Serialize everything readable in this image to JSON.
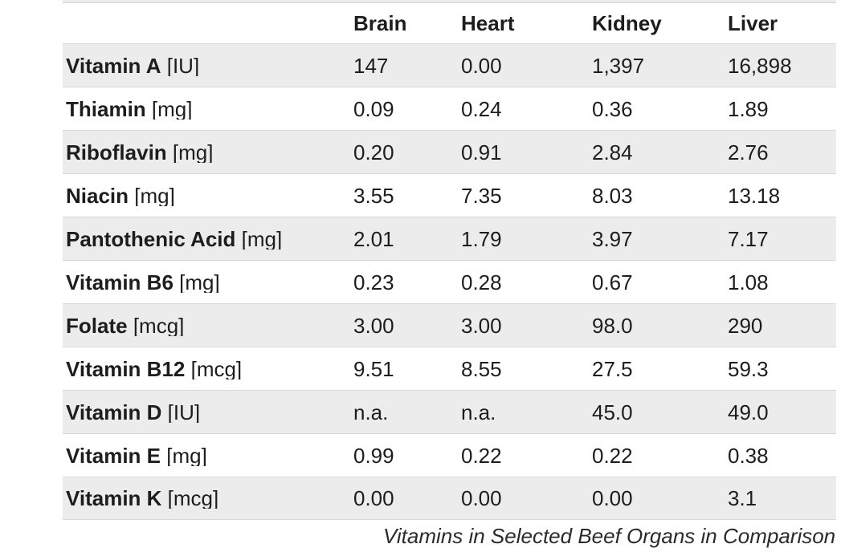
{
  "chart_data": {
    "type": "table",
    "columns": [
      "",
      "Brain",
      "Heart",
      "Kidney",
      "Liver"
    ],
    "rows": [
      {
        "name": "Vitamin A",
        "unit": "[IU]",
        "values": [
          "147",
          "0.00",
          "1,397",
          "16,898"
        ]
      },
      {
        "name": "Thiamin",
        "unit": "[mg]",
        "values": [
          "0.09",
          "0.24",
          "0.36",
          "1.89"
        ]
      },
      {
        "name": "Riboflavin",
        "unit": "[mg]",
        "values": [
          "0.20",
          "0.91",
          "2.84",
          "2.76"
        ]
      },
      {
        "name": "Niacin",
        "unit": "[mg]",
        "values": [
          "3.55",
          "7.35",
          "8.03",
          "13.18"
        ]
      },
      {
        "name": "Pantothenic Acid",
        "unit": "[mg]",
        "values": [
          "2.01",
          "1.79",
          "3.97",
          "7.17"
        ]
      },
      {
        "name": "Vitamin B6",
        "unit": "[mg]",
        "values": [
          "0.23",
          "0.28",
          "0.67",
          "1.08"
        ]
      },
      {
        "name": "Folate",
        "unit": "[mcg]",
        "values": [
          "3.00",
          "3.00",
          "98.0",
          "290"
        ]
      },
      {
        "name": "Vitamin B12",
        "unit": "[mcg]",
        "values": [
          "9.51",
          "8.55",
          "27.5",
          "59.3"
        ]
      },
      {
        "name": "Vitamin D",
        "unit": "[IU]",
        "values": [
          "n.a.",
          "n.a.",
          "45.0",
          "49.0"
        ]
      },
      {
        "name": "Vitamin E",
        "unit": "[mg]",
        "values": [
          "0.99",
          "0.22",
          "0.22",
          "0.38"
        ]
      },
      {
        "name": "Vitamin K",
        "unit": "[mcg]",
        "values": [
          "0.00",
          "0.00",
          "0.00",
          "3.1"
        ]
      }
    ],
    "caption": "Vitamins in Selected Beef Organs in Comparison",
    "layout_hints": {
      "striped_row_indices": [
        0,
        2,
        4,
        6,
        8,
        10
      ],
      "values_alignment": "left",
      "grid": "horizontal-row-separators"
    }
  },
  "colors": {
    "row_stripe": "#ececec",
    "row_border": "#d7d7d7",
    "text": "#1d1d1d",
    "caption_text": "#2b2b2b",
    "background": "#ffffff"
  }
}
